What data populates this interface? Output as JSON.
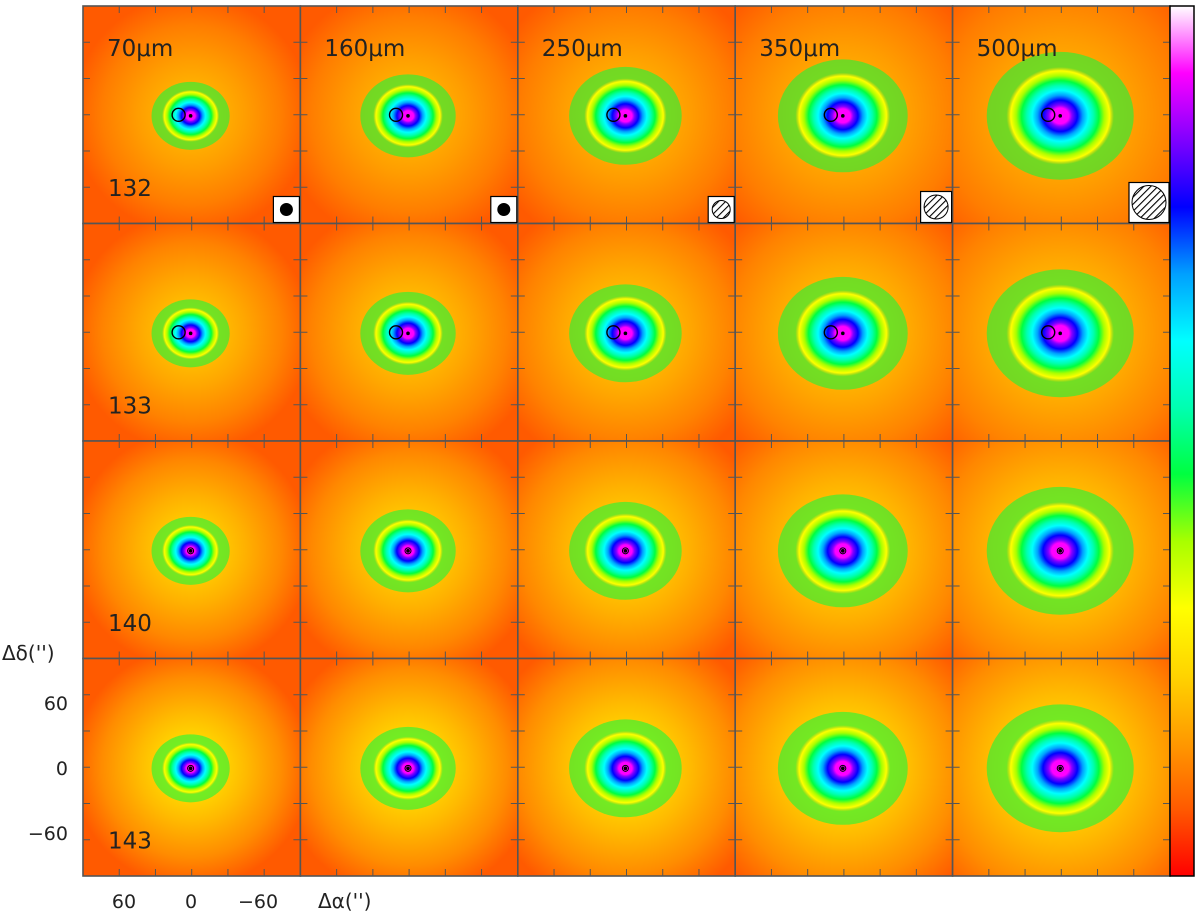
{
  "wavelengths": [
    "70μm",
    "160μm",
    "250μm",
    "350μm",
    "500μm"
  ],
  "sources": [
    "132",
    "133",
    "140",
    "143"
  ],
  "axes": {
    "x_label": "Δα('')",
    "y_label": "Δδ('')",
    "x_ticks": [
      "60",
      "0",
      "−60"
    ],
    "y_ticks": [
      "60",
      "0",
      "−60"
    ]
  },
  "colormap": [
    "#ff0000",
    "#ff5a00",
    "#ff9a00",
    "#ffd400",
    "#ffff00",
    "#a8ff00",
    "#00ff40",
    "#00ffb0",
    "#00ffff",
    "#00a0ff",
    "#0000ff",
    "#8000ff",
    "#ff00ff",
    "#ffffff"
  ]
}
